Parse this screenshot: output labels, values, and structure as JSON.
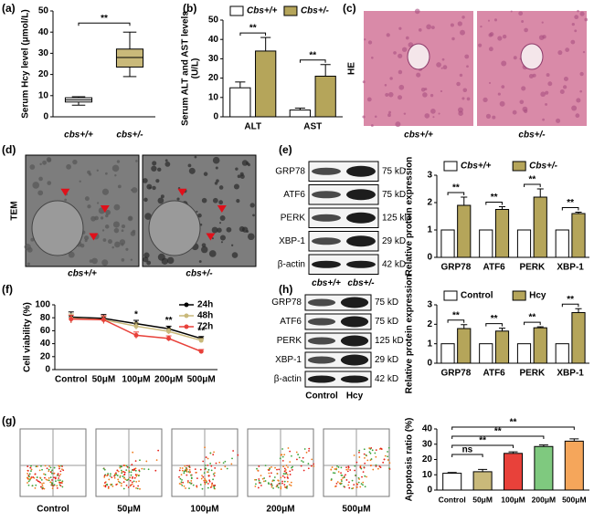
{
  "panel_labels": [
    "(a)",
    "(b)",
    "(c)",
    "(d)",
    "(e)",
    "(f)",
    "(g)",
    "(h)"
  ],
  "he_images": {
    "stain": "HE",
    "labels": [
      "cbs+/+",
      "cbs+/-"
    ]
  },
  "tem_images": {
    "stain": "TEM",
    "labels": [
      "cbs+/+",
      "cbs+/-"
    ]
  },
  "blot_e": {
    "proteins": [
      "GRP78",
      "ATF6",
      "PERK",
      "XBP-1",
      "β-actin"
    ],
    "sizes": [
      "75 kD",
      "75 kD",
      "125 kD",
      "29 kD",
      "42 kD"
    ],
    "lanes": [
      "cbs+/+",
      "cbs+/-"
    ]
  },
  "blot_h": {
    "proteins": [
      "GRP78",
      "ATF6",
      "PERK",
      "XBP-1",
      "β-actin"
    ],
    "sizes": [
      "75 kD",
      "75 kD",
      "125 kD",
      "29 kD",
      "42 kD"
    ],
    "lanes": [
      "Control",
      "Hcy"
    ]
  },
  "flow": {
    "labels": [
      "Control",
      "50μM",
      "100μM",
      "200μM",
      "500μM"
    ]
  },
  "chart_data": [
    {
      "type": "box",
      "ylabel": [
        "Serum Hcy level (μmol/L)"
      ],
      "categories": [
        "cbs+/+",
        "cbs+/-"
      ],
      "boxes": [
        {
          "min": 5.5,
          "q1": 7,
          "median": 8,
          "q3": 9,
          "max": 9.5
        },
        {
          "min": 19,
          "q1": 23.5,
          "median": 28,
          "q3": 32,
          "max": 40
        }
      ],
      "colors": [
        "#ffffff",
        "#c9b97a"
      ],
      "ylim": [
        0,
        50
      ],
      "yticks": [
        0,
        10,
        20,
        30,
        40,
        50
      ],
      "significance": "**"
    },
    {
      "type": "bar",
      "ylabel": [
        "Serum ALT and AST levels",
        "(U/L)"
      ],
      "categories": [
        "ALT",
        "AST"
      ],
      "legend": "top",
      "series": [
        {
          "name": "Cbs+/+",
          "color": "#ffffff",
          "values": [
            15,
            3.5
          ],
          "errors": [
            3,
            1
          ]
        },
        {
          "name": "Cbs+/-",
          "color": "#b5a55a",
          "values": [
            34,
            21
          ],
          "errors": [
            7,
            6
          ]
        }
      ],
      "ylim": [
        0,
        50
      ],
      "yticks": [
        0,
        10,
        20,
        30,
        40,
        50
      ],
      "significance": [
        "**",
        "**"
      ]
    },
    {
      "type": "bar",
      "ylabel": [
        "Relative protein expression"
      ],
      "categories": [
        "GRP78",
        "ATF6",
        "PERK",
        "XBP-1"
      ],
      "legend": "top",
      "series": [
        {
          "name": "Cbs+/+",
          "color": "#ffffff",
          "values": [
            1,
            1,
            1,
            1
          ]
        },
        {
          "name": "Cbs+/-",
          "color": "#b5a55a",
          "values": [
            1.9,
            1.75,
            2.2,
            1.6
          ],
          "errors": [
            0.3,
            0.1,
            0.3,
            0.05
          ]
        }
      ],
      "ylim": [
        0,
        3
      ],
      "yticks": [
        0,
        1,
        2,
        3
      ],
      "significance": [
        "**",
        "**",
        "**",
        "**"
      ]
    },
    {
      "type": "line",
      "ylabel": [
        "Cell viability (%)"
      ],
      "categories": [
        "Control",
        "50μM",
        "100μM",
        "200μM",
        "500μM"
      ],
      "legend": "upper right",
      "series": [
        {
          "name": "24h",
          "color": "#000000",
          "values": [
            81,
            79,
            71,
            63,
            48
          ],
          "errors": [
            8,
            6,
            5,
            4,
            3
          ]
        },
        {
          "name": "48h",
          "color": "#c9b97a",
          "values": [
            79,
            77,
            67,
            59,
            45
          ],
          "errors": [
            7,
            5,
            5,
            4,
            3
          ]
        },
        {
          "name": "72h",
          "color": "#e8413a",
          "values": [
            78,
            77,
            53,
            48,
            28
          ],
          "errors": [
            6,
            6,
            5,
            4,
            3
          ]
        }
      ],
      "ylim": [
        0,
        100
      ],
      "yticks": [
        0,
        20,
        40,
        60,
        80,
        100
      ],
      "significance": [
        null,
        null,
        "*",
        "**",
        "**"
      ]
    },
    {
      "type": "bar",
      "ylabel": [
        "Relative protein expression"
      ],
      "categories": [
        "GRP78",
        "ATF6",
        "PERK",
        "XBP-1"
      ],
      "legend": "top",
      "series": [
        {
          "name": "Control",
          "color": "#ffffff",
          "values": [
            1,
            1,
            1,
            1
          ]
        },
        {
          "name": "Hcy",
          "color": "#b5a55a",
          "values": [
            1.78,
            1.65,
            1.82,
            2.6
          ],
          "errors": [
            0.2,
            0.15,
            0.05,
            0.2
          ]
        }
      ],
      "ylim": [
        0,
        3
      ],
      "yticks": [
        0,
        1,
        2,
        3
      ],
      "significance": [
        "**",
        "**",
        "**",
        "**"
      ]
    },
    {
      "type": "bar",
      "ylabel": [
        "Apoptosis ratio (%)"
      ],
      "categories": [
        "Control",
        "50μM",
        "100μM",
        "200μM",
        "500μM"
      ],
      "values": [
        11,
        12,
        24,
        28.5,
        32
      ],
      "errors": [
        0.5,
        1.5,
        1,
        1,
        1.5
      ],
      "colors": [
        "#ffffff",
        "#c9b97a",
        "#e8413a",
        "#7fc97f",
        "#f5a65b"
      ],
      "ylim": [
        0,
        40
      ],
      "yticks": [
        0,
        10,
        20,
        30,
        40
      ],
      "significance": [
        null,
        "ns",
        "**",
        "**",
        "**"
      ]
    }
  ]
}
